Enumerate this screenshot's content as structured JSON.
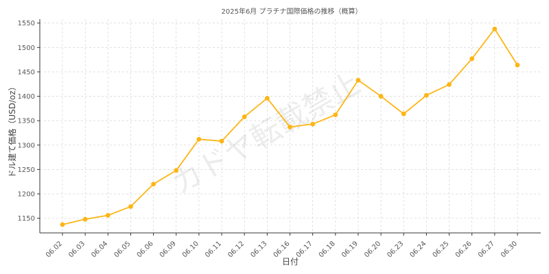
{
  "chart_data": {
    "type": "line",
    "title": "2025年6月 プラチナ国際価格の推移（概算）",
    "xlabel": "日付",
    "ylabel": "ドル建て価格（USD/oz）",
    "categories": [
      "06.02",
      "06.03",
      "06.04",
      "06.05",
      "06.06",
      "06.09",
      "06.10",
      "06.11",
      "06.12",
      "06.13",
      "06.16",
      "06.17",
      "06.18",
      "06.19",
      "06.20",
      "06.23",
      "06.24",
      "06.25",
      "06.26",
      "06.27",
      "06.30"
    ],
    "series": [
      {
        "values": [
          1137,
          1148,
          1156,
          1174,
          1220,
          1248,
          1312,
          1308,
          1358,
          1396,
          1337,
          1343,
          1362,
          1433,
          1400,
          1364,
          1402,
          1424,
          1477,
          1538,
          1464
        ]
      }
    ],
    "ylim": [
      1120,
      1558
    ],
    "yticks": [
      1150,
      1200,
      1250,
      1300,
      1350,
      1400,
      1450,
      1500,
      1550
    ],
    "grid": true,
    "color": "#FDB515",
    "watermark": "カドヤ転載禁止"
  }
}
